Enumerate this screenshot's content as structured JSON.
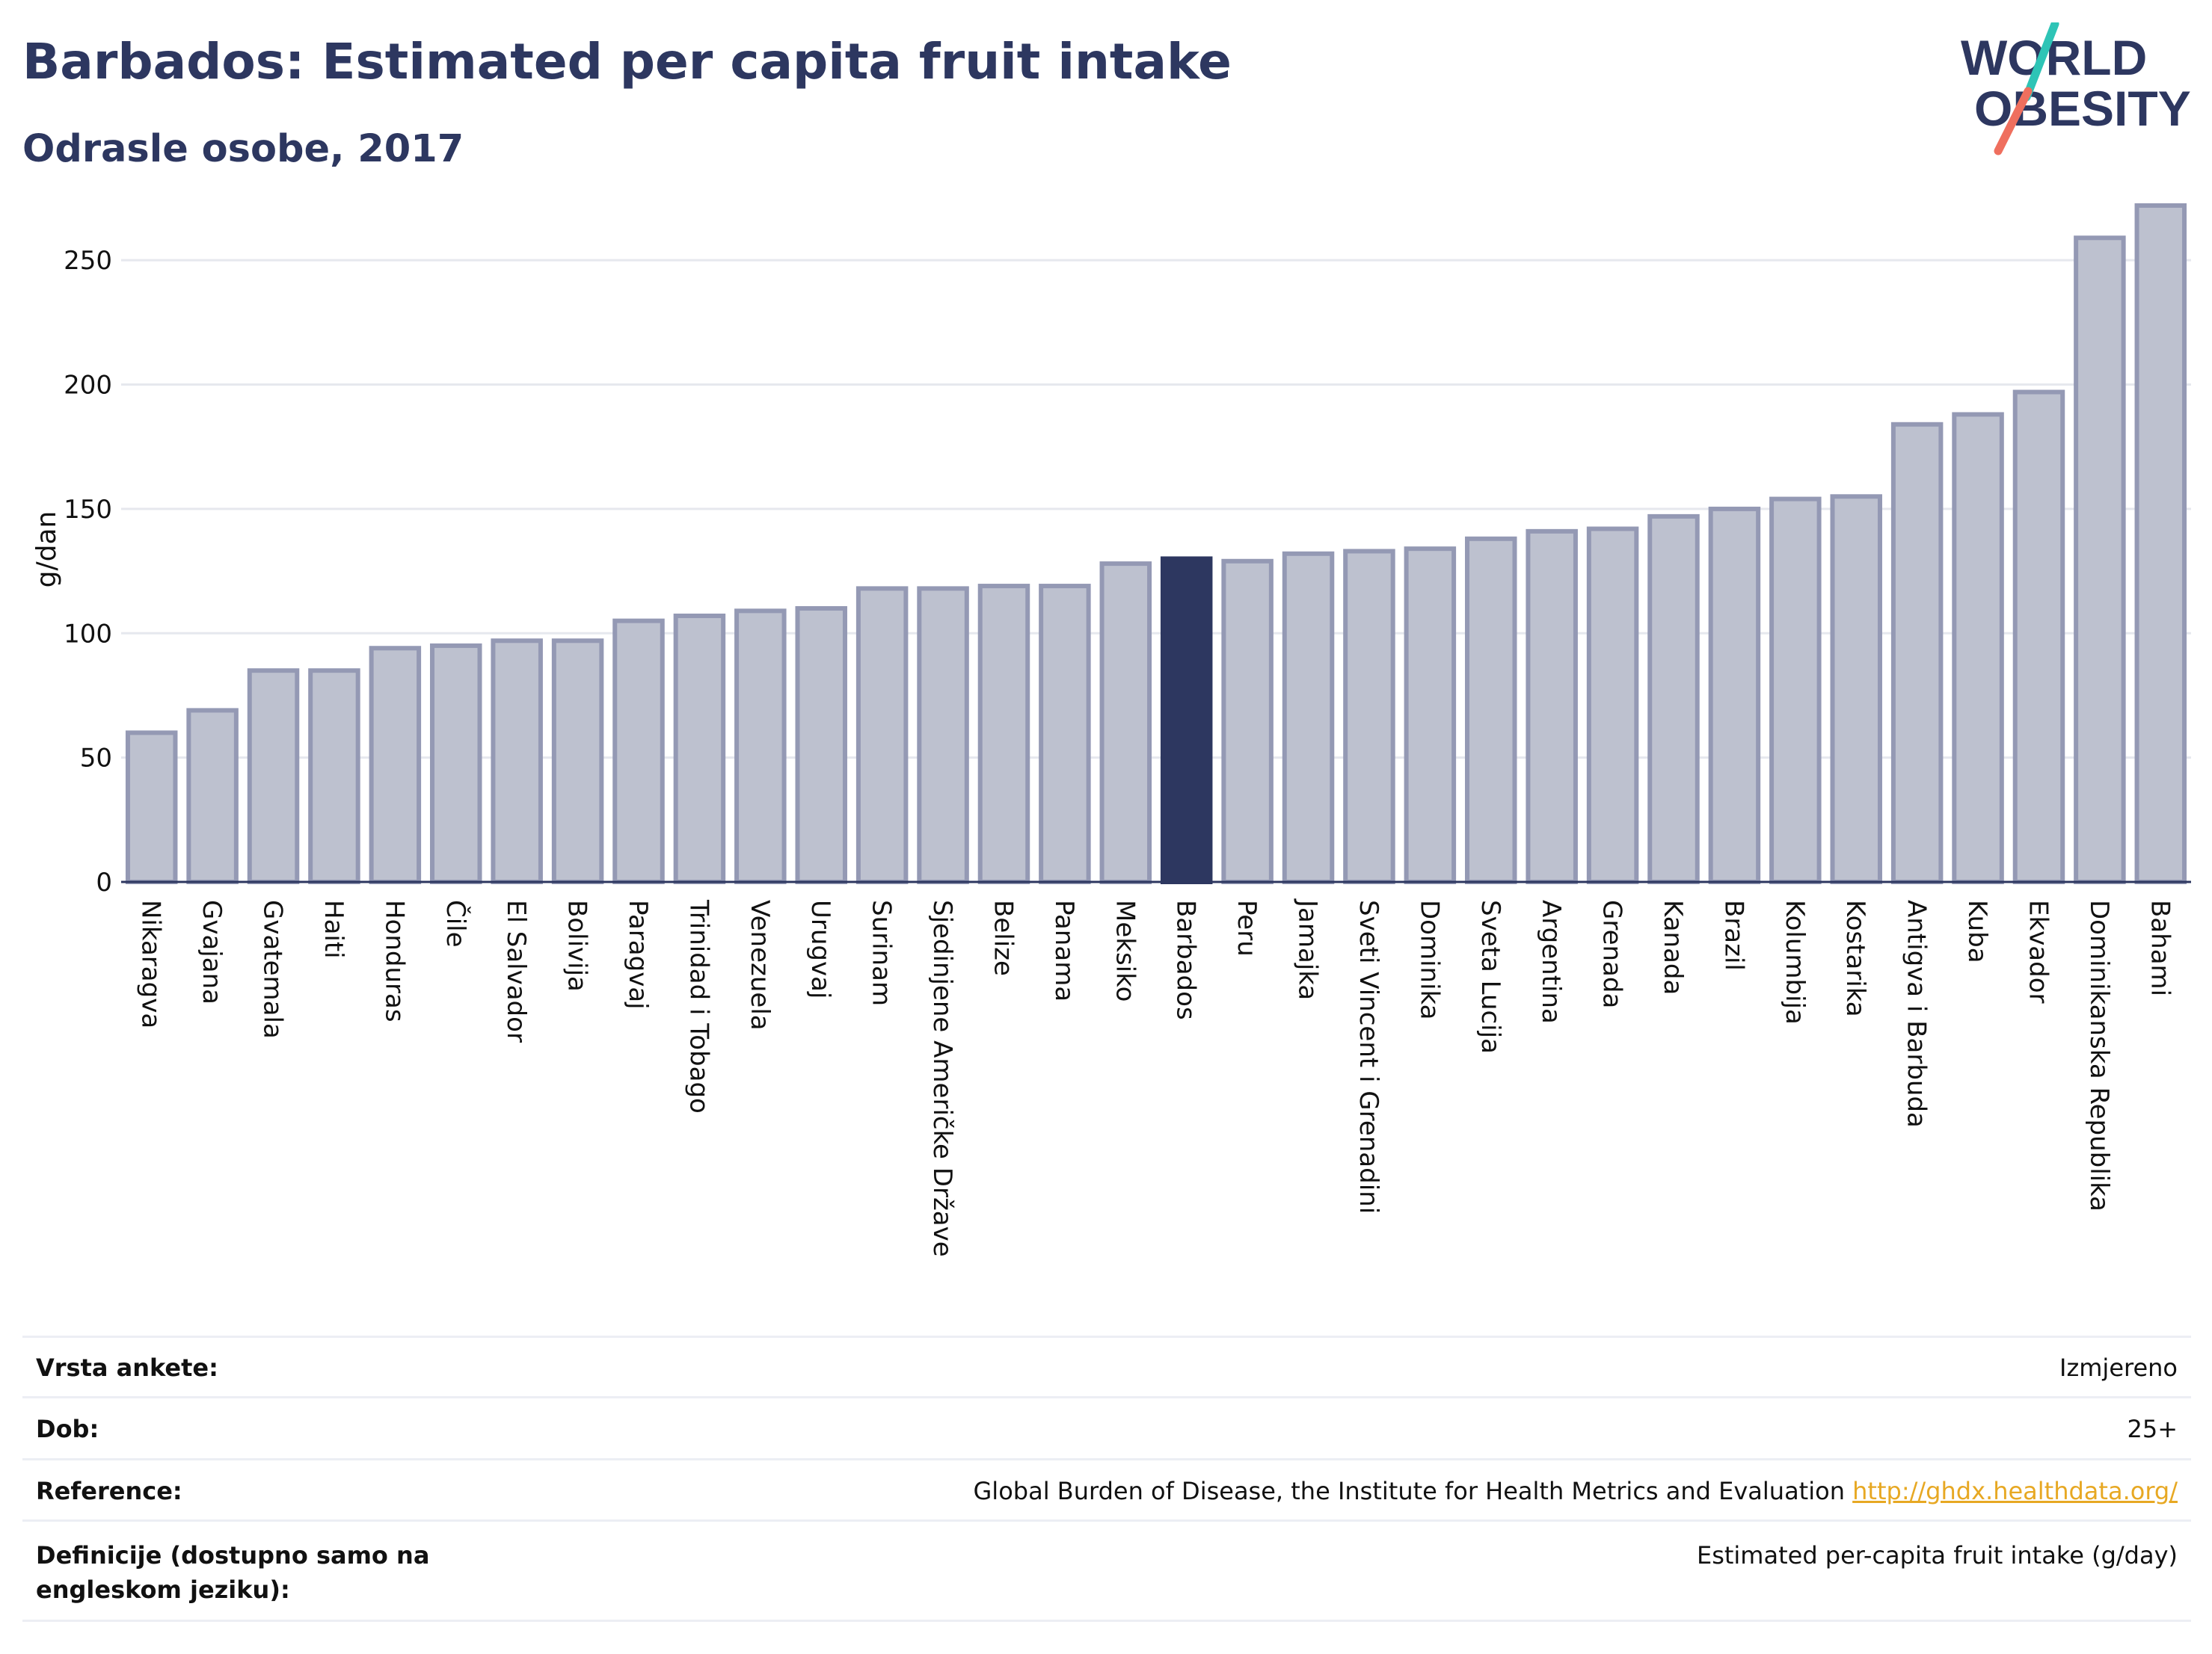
{
  "header": {
    "title": "Barbados: Estimated per capita fruit intake",
    "subtitle": "Odrasle osobe, 2017"
  },
  "logo": {
    "line1": "WORLD",
    "line2": "OBESITY",
    "accent_colors": [
      "#2ec4b6",
      "#ef6f5e"
    ]
  },
  "colors": {
    "bar": "#bdc1cf",
    "bar_border": "#9499b4",
    "highlight": "#2d3760",
    "grid": "#e6e8ee",
    "text": "#2d3760"
  },
  "chart_data": {
    "type": "bar",
    "ylabel": "g/dan",
    "ylim": [
      0,
      275
    ],
    "yticks": [
      0,
      50,
      100,
      150,
      200,
      250
    ],
    "grid": true,
    "highlight": "Barbados",
    "categories": [
      "Nikaragva",
      "Gvajana",
      "Gvatemala",
      "Haiti",
      "Honduras",
      "Čile",
      "El Salvador",
      "Bolivija",
      "Paragvaj",
      "Trinidad i Tobago",
      "Venezuela",
      "Urugvaj",
      "Surinam",
      "Sjedinjene Američke Države",
      "Belize",
      "Panama",
      "Meksiko",
      "Barbados",
      "Peru",
      "Jamajka",
      "Sveti Vincent i Grenadini",
      "Dominika",
      "Sveta Lucija",
      "Argentina",
      "Grenada",
      "Kanada",
      "Brazil",
      "Kolumbija",
      "Kostarika",
      "Antigva i Barbuda",
      "Kuba",
      "Ekvador",
      "Dominikanska Republika",
      "Bahami"
    ],
    "values": [
      60,
      69,
      85,
      85,
      94,
      95,
      97,
      97,
      105,
      107,
      109,
      110,
      118,
      118,
      119,
      119,
      128,
      130,
      129,
      132,
      133,
      134,
      138,
      141,
      142,
      147,
      150,
      154,
      155,
      184,
      188,
      197,
      259,
      272
    ]
  },
  "info": [
    {
      "label": "Vrsta ankete:",
      "value": "Izmjereno"
    },
    {
      "label": "Dob:",
      "value": "25+"
    },
    {
      "label": "Reference:",
      "value": "Global Burden of Disease, the Institute for Health Metrics and Evaluation",
      "link": "http://ghdx.healthdata.org/"
    },
    {
      "label": "Definicije (dostupno samo na engleskom jeziku):",
      "value": "Estimated per-capita fruit intake (g/day)"
    }
  ]
}
